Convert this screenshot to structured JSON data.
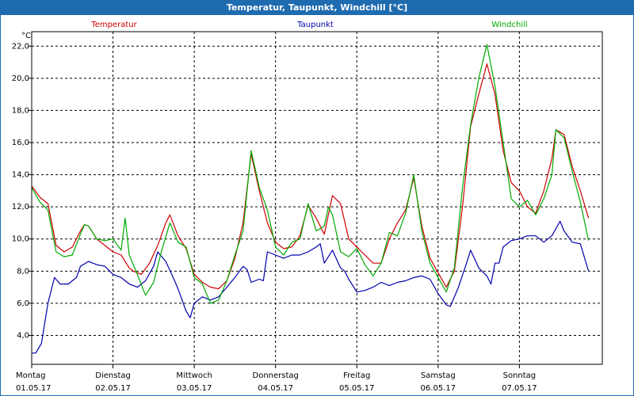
{
  "chart_data": {
    "type": "line",
    "title": "Temperatur, Taupunkt, Windchill [°C]",
    "ylabel": "°C",
    "ylim": [
      2.2,
      22.9
    ],
    "yticks": [
      4.0,
      6.0,
      8.0,
      10.0,
      12.0,
      14.0,
      16.0,
      18.0,
      20.0,
      22.0
    ],
    "ytick_labels": [
      "4,0",
      "6,0",
      "8,0",
      "10,0",
      "12,0",
      "14,0",
      "16,0",
      "18,0",
      "20,0",
      "22,0"
    ],
    "xlim": [
      0,
      7
    ],
    "x_days": [
      {
        "day": "Montag",
        "date": "01.05.17"
      },
      {
        "day": "Dienstag",
        "date": "02.05.17"
      },
      {
        "day": "Mittwoch",
        "date": "03.05.17"
      },
      {
        "day": "Donnerstag",
        "date": "04.05.17"
      },
      {
        "day": "Freitag",
        "date": "05.05.17"
      },
      {
        "day": "Samstag",
        "date": "06.05.17"
      },
      {
        "day": "Sonntag",
        "date": "07.05.17"
      }
    ],
    "grid": true,
    "legend": "top",
    "series": [
      {
        "name": "Temperatur",
        "color": "#cc0000",
        "points": [
          [
            0,
            13.3
          ],
          [
            0.1,
            12.6
          ],
          [
            0.2,
            12.2
          ],
          [
            0.3,
            9.6
          ],
          [
            0.4,
            9.2
          ],
          [
            0.5,
            9.5
          ],
          [
            0.6,
            10.5
          ],
          [
            0.65,
            10.9
          ],
          [
            0.7,
            10.8
          ],
          [
            0.8,
            10.0
          ],
          [
            0.9,
            9.6
          ],
          [
            1.0,
            9.2
          ],
          [
            1.1,
            9.0
          ],
          [
            1.2,
            8.2
          ],
          [
            1.25,
            8.0
          ],
          [
            1.35,
            7.8
          ],
          [
            1.45,
            8.5
          ],
          [
            1.55,
            9.6
          ],
          [
            1.65,
            11.0
          ],
          [
            1.7,
            11.5
          ],
          [
            1.8,
            10.2
          ],
          [
            1.9,
            9.4
          ],
          [
            2.0,
            7.8
          ],
          [
            2.1,
            7.3
          ],
          [
            2.2,
            7.0
          ],
          [
            2.3,
            6.9
          ],
          [
            2.4,
            7.4
          ],
          [
            2.5,
            8.8
          ],
          [
            2.6,
            11.0
          ],
          [
            2.7,
            15.3
          ],
          [
            2.8,
            13.0
          ],
          [
            2.9,
            11.0
          ],
          [
            3.0,
            9.8
          ],
          [
            3.1,
            9.4
          ],
          [
            3.2,
            9.5
          ],
          [
            3.3,
            10.2
          ],
          [
            3.4,
            12.1
          ],
          [
            3.5,
            11.3
          ],
          [
            3.6,
            10.3
          ],
          [
            3.7,
            12.7
          ],
          [
            3.8,
            12.2
          ],
          [
            3.9,
            10.0
          ],
          [
            4.0,
            9.5
          ],
          [
            4.1,
            9.0
          ],
          [
            4.2,
            8.5
          ],
          [
            4.3,
            8.5
          ],
          [
            4.4,
            10.0
          ],
          [
            4.5,
            11.0
          ],
          [
            4.6,
            11.8
          ],
          [
            4.7,
            13.8
          ],
          [
            4.8,
            10.8
          ],
          [
            4.9,
            8.8
          ],
          [
            5.0,
            7.9
          ],
          [
            5.1,
            7.0
          ],
          [
            5.2,
            8.0
          ],
          [
            5.3,
            12.0
          ],
          [
            5.4,
            17.0
          ],
          [
            5.5,
            19.0
          ],
          [
            5.6,
            20.9
          ],
          [
            5.7,
            19.0
          ],
          [
            5.8,
            15.5
          ],
          [
            5.9,
            13.5
          ],
          [
            6.0,
            13.0
          ],
          [
            6.1,
            12.0
          ],
          [
            6.2,
            11.6
          ],
          [
            6.3,
            13.0
          ],
          [
            6.4,
            15.0
          ],
          [
            6.45,
            16.8
          ],
          [
            6.55,
            16.5
          ],
          [
            6.65,
            14.5
          ],
          [
            6.75,
            13.0
          ],
          [
            6.85,
            11.3
          ]
        ]
      },
      {
        "name": "Taupunkt",
        "color": "#0000aa",
        "points": [
          [
            0,
            2.9
          ],
          [
            0.05,
            2.9
          ],
          [
            0.12,
            3.5
          ],
          [
            0.2,
            6.0
          ],
          [
            0.28,
            7.6
          ],
          [
            0.35,
            7.2
          ],
          [
            0.45,
            7.2
          ],
          [
            0.55,
            7.6
          ],
          [
            0.6,
            8.3
          ],
          [
            0.7,
            8.6
          ],
          [
            0.8,
            8.4
          ],
          [
            0.9,
            8.3
          ],
          [
            1.0,
            7.8
          ],
          [
            1.1,
            7.6
          ],
          [
            1.2,
            7.2
          ],
          [
            1.3,
            7.0
          ],
          [
            1.4,
            7.4
          ],
          [
            1.5,
            8.3
          ],
          [
            1.55,
            9.2
          ],
          [
            1.65,
            8.6
          ],
          [
            1.75,
            7.5
          ],
          [
            1.8,
            6.9
          ],
          [
            1.9,
            5.5
          ],
          [
            1.95,
            5.1
          ],
          [
            2.0,
            6.0
          ],
          [
            2.1,
            6.4
          ],
          [
            2.2,
            6.2
          ],
          [
            2.3,
            6.4
          ],
          [
            2.4,
            7.0
          ],
          [
            2.5,
            7.6
          ],
          [
            2.6,
            8.3
          ],
          [
            2.65,
            8.1
          ],
          [
            2.7,
            7.3
          ],
          [
            2.8,
            7.5
          ],
          [
            2.85,
            7.4
          ],
          [
            2.9,
            9.2
          ],
          [
            3.0,
            9.0
          ],
          [
            3.1,
            8.8
          ],
          [
            3.2,
            9.0
          ],
          [
            3.3,
            9.0
          ],
          [
            3.4,
            9.2
          ],
          [
            3.5,
            9.5
          ],
          [
            3.55,
            9.7
          ],
          [
            3.6,
            8.5
          ],
          [
            3.7,
            9.3
          ],
          [
            3.8,
            8.2
          ],
          [
            3.85,
            8.0
          ],
          [
            3.9,
            7.5
          ],
          [
            4.0,
            6.7
          ],
          [
            4.1,
            6.8
          ],
          [
            4.2,
            7.0
          ],
          [
            4.3,
            7.3
          ],
          [
            4.4,
            7.1
          ],
          [
            4.5,
            7.3
          ],
          [
            4.6,
            7.4
          ],
          [
            4.7,
            7.6
          ],
          [
            4.8,
            7.7
          ],
          [
            4.9,
            7.5
          ],
          [
            5.0,
            6.6
          ],
          [
            5.1,
            5.9
          ],
          [
            5.15,
            5.8
          ],
          [
            5.25,
            7.0
          ],
          [
            5.35,
            8.5
          ],
          [
            5.4,
            9.3
          ],
          [
            5.5,
            8.2
          ],
          [
            5.6,
            7.7
          ],
          [
            5.65,
            7.2
          ],
          [
            5.7,
            8.5
          ],
          [
            5.75,
            8.5
          ],
          [
            5.8,
            9.5
          ],
          [
            5.9,
            9.9
          ],
          [
            6.0,
            10.0
          ],
          [
            6.1,
            10.2
          ],
          [
            6.2,
            10.2
          ],
          [
            6.3,
            9.8
          ],
          [
            6.4,
            10.2
          ],
          [
            6.5,
            11.1
          ],
          [
            6.55,
            10.5
          ],
          [
            6.65,
            9.8
          ],
          [
            6.75,
            9.7
          ],
          [
            6.85,
            8.0
          ]
        ]
      },
      {
        "name": "Windchill",
        "color": "#00aa00",
        "points": [
          [
            0,
            13.2
          ],
          [
            0.1,
            12.3
          ],
          [
            0.2,
            11.8
          ],
          [
            0.3,
            9.2
          ],
          [
            0.4,
            8.9
          ],
          [
            0.5,
            9.0
          ],
          [
            0.6,
            10.3
          ],
          [
            0.65,
            10.9
          ],
          [
            0.7,
            10.8
          ],
          [
            0.8,
            10.0
          ],
          [
            0.9,
            9.9
          ],
          [
            1.0,
            10.0
          ],
          [
            1.1,
            9.3
          ],
          [
            1.15,
            11.3
          ],
          [
            1.2,
            9.0
          ],
          [
            1.3,
            7.8
          ],
          [
            1.4,
            6.5
          ],
          [
            1.5,
            7.3
          ],
          [
            1.6,
            9.3
          ],
          [
            1.7,
            11.0
          ],
          [
            1.8,
            9.8
          ],
          [
            1.9,
            9.5
          ],
          [
            2.0,
            7.6
          ],
          [
            2.1,
            7.2
          ],
          [
            2.2,
            6.0
          ],
          [
            2.3,
            6.2
          ],
          [
            2.4,
            7.4
          ],
          [
            2.5,
            9.0
          ],
          [
            2.6,
            10.5
          ],
          [
            2.7,
            15.5
          ],
          [
            2.8,
            13.2
          ],
          [
            2.9,
            11.8
          ],
          [
            3.0,
            9.5
          ],
          [
            3.1,
            9.0
          ],
          [
            3.2,
            9.8
          ],
          [
            3.3,
            10.0
          ],
          [
            3.4,
            12.2
          ],
          [
            3.5,
            10.5
          ],
          [
            3.6,
            10.8
          ],
          [
            3.65,
            12.0
          ],
          [
            3.7,
            11.5
          ],
          [
            3.8,
            9.2
          ],
          [
            3.9,
            8.9
          ],
          [
            4.0,
            9.4
          ],
          [
            4.1,
            8.4
          ],
          [
            4.2,
            7.7
          ],
          [
            4.3,
            8.5
          ],
          [
            4.4,
            10.4
          ],
          [
            4.5,
            10.2
          ],
          [
            4.6,
            11.6
          ],
          [
            4.7,
            14.0
          ],
          [
            4.8,
            10.5
          ],
          [
            4.9,
            8.5
          ],
          [
            5.0,
            7.6
          ],
          [
            5.1,
            6.7
          ],
          [
            5.2,
            8.2
          ],
          [
            5.3,
            13.2
          ],
          [
            5.4,
            17.1
          ],
          [
            5.5,
            20.0
          ],
          [
            5.6,
            22.1
          ],
          [
            5.7,
            19.5
          ],
          [
            5.8,
            16.0
          ],
          [
            5.9,
            12.5
          ],
          [
            6.0,
            12.0
          ],
          [
            6.1,
            12.4
          ],
          [
            6.2,
            11.5
          ],
          [
            6.3,
            12.5
          ],
          [
            6.4,
            14.0
          ],
          [
            6.45,
            16.8
          ],
          [
            6.55,
            16.3
          ],
          [
            6.65,
            14.2
          ],
          [
            6.75,
            12.3
          ],
          [
            6.85,
            9.9
          ]
        ]
      }
    ]
  }
}
